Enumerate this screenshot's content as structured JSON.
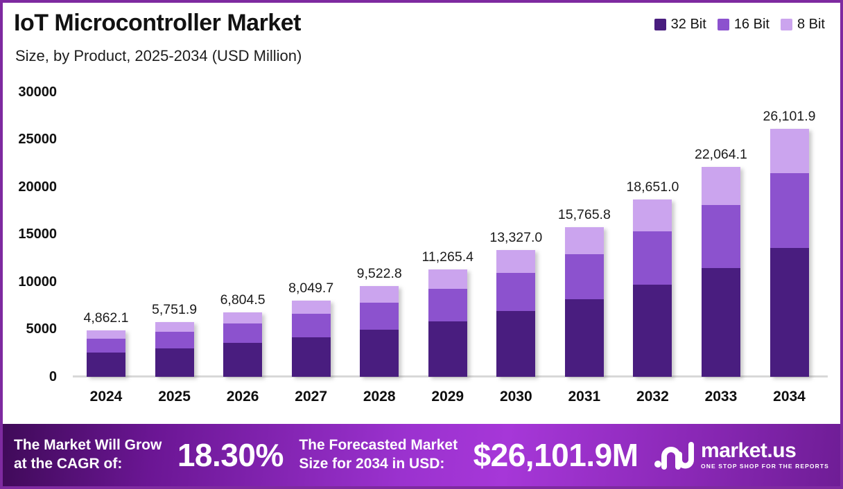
{
  "header": {
    "title": "IoT Microcontroller Market",
    "subtitle": "Size, by Product, 2025-2034 (USD Million)"
  },
  "colors": {
    "bit32": "#491D7F",
    "bit16": "#8C52CE",
    "bit8": "#CBA4EE",
    "page_border": "#7E2AA0",
    "banner_dark": "#3F0A58",
    "banner_bright": "#A637D8",
    "axis_baseline": "#D8D8D8",
    "text": "#141414"
  },
  "legend": [
    {
      "label": "32 Bit",
      "color": "#491D7F"
    },
    {
      "label": "16 Bit",
      "color": "#8C52CE"
    },
    {
      "label": "8 Bit",
      "color": "#CBA4EE"
    }
  ],
  "chart_data": {
    "type": "bar",
    "stacked": true,
    "title": "IoT Microcontroller Market",
    "subtitle": "Size, by Product, 2025-2034 (USD Million)",
    "categories": [
      "2024",
      "2025",
      "2026",
      "2027",
      "2028",
      "2029",
      "2030",
      "2031",
      "2032",
      "2033",
      "2034"
    ],
    "series": [
      {
        "name": "32 Bit",
        "color": "#491D7F",
        "values": [
          2528.3,
          2991.0,
          3538.3,
          4185.8,
          4951.9,
          5858.0,
          6930.0,
          8198.2,
          9698.5,
          11473.3,
          13573.0
        ]
      },
      {
        "name": "16 Bit",
        "color": "#8C52CE",
        "values": [
          1458.6,
          1725.6,
          2041.4,
          2414.9,
          2856.8,
          3379.6,
          3998.1,
          4729.7,
          5595.3,
          6619.2,
          7830.6
        ]
      },
      {
        "name": "8 Bit",
        "color": "#CBA4EE",
        "values": [
          875.2,
          1035.3,
          1224.8,
          1449.0,
          1714.1,
          2027.8,
          2398.9,
          2837.9,
          3357.2,
          3971.6,
          4698.3
        ]
      }
    ],
    "totals": [
      4862.1,
      5751.9,
      6804.5,
      8049.7,
      9522.8,
      11265.4,
      13327.0,
      15765.8,
      18651.0,
      22064.1,
      26101.9
    ],
    "total_labels": [
      "4,862.1",
      "5,751.9",
      "6,804.5",
      "8,049.7",
      "9,522.8",
      "11,265.4",
      "13,327.0",
      "15,765.8",
      "18,651.0",
      "22,064.1",
      "26,101.9"
    ],
    "y_ticks": [
      0,
      5000,
      10000,
      15000,
      20000,
      25000,
      30000
    ],
    "y_tick_labels": [
      "0",
      "5000",
      "10000",
      "15000",
      "20000",
      "25000",
      "30000"
    ],
    "ylim": [
      0,
      30000
    ],
    "xlabel": "",
    "ylabel": "",
    "grid": false,
    "legend_position": "top-right"
  },
  "banner": {
    "cagr_label_line1": "The Market Will Grow",
    "cagr_label_line2": "at the CAGR of:",
    "cagr_value": "18.30%",
    "forecast_label_line1": "The Forecasted Market",
    "forecast_label_line2": "Size for 2034 in USD:",
    "forecast_value": "$26,101.9M",
    "brand": {
      "name": "market.us",
      "tagline": "ONE STOP SHOP FOR THE REPORTS"
    }
  }
}
